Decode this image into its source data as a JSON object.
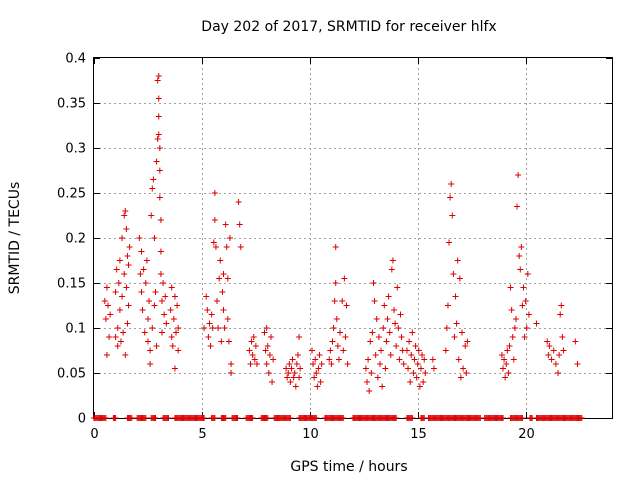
{
  "chart_data": {
    "type": "scatter",
    "title": "Day 202 of 2017, SRMTID for receiver hlfx",
    "xlabel": "GPS time / hours",
    "ylabel": "SRMTID / TECUs",
    "xlim": [
      0,
      24
    ],
    "ylim": [
      0,
      0.4
    ],
    "xticks": [
      0,
      5,
      10,
      15,
      20
    ],
    "yticks": [
      0,
      0.05,
      0.1,
      0.15,
      0.2,
      0.25,
      0.3,
      0.35,
      0.4
    ],
    "xtick_labels": [
      "0",
      "5",
      "10",
      "15",
      "20"
    ],
    "ytick_labels": [
      "0",
      "0.05",
      "0.1",
      "0.15",
      "0.2",
      "0.25",
      "0.3",
      "0.35",
      "0.4"
    ],
    "grid": true,
    "marker": "+",
    "color": "#dd0000",
    "series": [
      {
        "name": "SRMTID",
        "points": [
          [
            0.5,
            0.13
          ],
          [
            0.55,
            0.11
          ],
          [
            0.6,
            0.145
          ],
          [
            0.6,
            0.07
          ],
          [
            0.65,
            0.125
          ],
          [
            0.7,
            0.09
          ],
          [
            0.75,
            0.115
          ],
          [
            1.0,
            0.09
          ],
          [
            1.0,
            0.14
          ],
          [
            1.05,
            0.165
          ],
          [
            1.1,
            0.1
          ],
          [
            1.1,
            0.08
          ],
          [
            1.15,
            0.15
          ],
          [
            1.2,
            0.175
          ],
          [
            1.2,
            0.12
          ],
          [
            1.25,
            0.085
          ],
          [
            1.3,
            0.2
          ],
          [
            1.3,
            0.135
          ],
          [
            1.35,
            0.095
          ],
          [
            1.4,
            0.225
          ],
          [
            1.4,
            0.16
          ],
          [
            1.45,
            0.23
          ],
          [
            1.45,
            0.07
          ],
          [
            1.5,
            0.21
          ],
          [
            1.5,
            0.145
          ],
          [
            1.55,
            0.18
          ],
          [
            1.55,
            0.105
          ],
          [
            1.6,
            0.17
          ],
          [
            1.6,
            0.125
          ],
          [
            1.65,
            0.19
          ],
          [
            2.1,
            0.2
          ],
          [
            2.15,
            0.16
          ],
          [
            2.2,
            0.185
          ],
          [
            2.2,
            0.14
          ],
          [
            2.25,
            0.12
          ],
          [
            2.3,
            0.165
          ],
          [
            2.35,
            0.095
          ],
          [
            2.4,
            0.15
          ],
          [
            2.45,
            0.175
          ],
          [
            2.5,
            0.11
          ],
          [
            2.5,
            0.085
          ],
          [
            2.55,
            0.13
          ],
          [
            2.6,
            0.075
          ],
          [
            2.6,
            0.06
          ],
          [
            2.65,
            0.225
          ],
          [
            2.7,
            0.255
          ],
          [
            2.7,
            0.1
          ],
          [
            2.75,
            0.265
          ],
          [
            2.8,
            0.2
          ],
          [
            2.8,
            0.125
          ],
          [
            2.85,
            0.14
          ],
          [
            2.9,
            0.285
          ],
          [
            2.9,
            0.08
          ],
          [
            2.95,
            0.31
          ],
          [
            2.95,
            0.375
          ],
          [
            3.0,
            0.38
          ],
          [
            3.0,
            0.355
          ],
          [
            3.0,
            0.335
          ],
          [
            3.0,
            0.315
          ],
          [
            3.05,
            0.3
          ],
          [
            3.05,
            0.275
          ],
          [
            3.05,
            0.245
          ],
          [
            3.1,
            0.22
          ],
          [
            3.1,
            0.185
          ],
          [
            3.1,
            0.16
          ],
          [
            3.15,
            0.13
          ],
          [
            3.15,
            0.095
          ],
          [
            3.2,
            0.15
          ],
          [
            3.25,
            0.115
          ],
          [
            3.3,
            0.135
          ],
          [
            3.35,
            0.105
          ],
          [
            3.55,
            0.12
          ],
          [
            3.6,
            0.09
          ],
          [
            3.6,
            0.145
          ],
          [
            3.65,
            0.08
          ],
          [
            3.7,
            0.11
          ],
          [
            3.75,
            0.135
          ],
          [
            3.75,
            0.055
          ],
          [
            3.8,
            0.095
          ],
          [
            3.85,
            0.125
          ],
          [
            3.9,
            0.075
          ],
          [
            3.9,
            0.1
          ],
          [
            5.1,
            0.1
          ],
          [
            5.2,
            0.135
          ],
          [
            5.25,
            0.12
          ],
          [
            5.3,
            0.09
          ],
          [
            5.35,
            0.105
          ],
          [
            5.4,
            0.08
          ],
          [
            5.45,
            0.115
          ],
          [
            5.5,
            0.1
          ],
          [
            5.55,
            0.195
          ],
          [
            5.6,
            0.22
          ],
          [
            5.6,
            0.25
          ],
          [
            5.65,
            0.19
          ],
          [
            5.7,
            0.13
          ],
          [
            5.75,
            0.1
          ],
          [
            5.8,
            0.155
          ],
          [
            5.85,
            0.175
          ],
          [
            5.9,
            0.085
          ],
          [
            5.95,
            0.14
          ],
          [
            6.0,
            0.16
          ],
          [
            6.0,
            0.12
          ],
          [
            6.05,
            0.1
          ],
          [
            6.1,
            0.215
          ],
          [
            6.15,
            0.19
          ],
          [
            6.2,
            0.155
          ],
          [
            6.2,
            0.11
          ],
          [
            6.25,
            0.085
          ],
          [
            6.3,
            0.2
          ],
          [
            6.35,
            0.06
          ],
          [
            6.35,
            0.05
          ],
          [
            6.7,
            0.24
          ],
          [
            6.75,
            0.215
          ],
          [
            6.8,
            0.19
          ],
          [
            7.2,
            0.075
          ],
          [
            7.25,
            0.06
          ],
          [
            7.3,
            0.085
          ],
          [
            7.35,
            0.07
          ],
          [
            7.4,
            0.09
          ],
          [
            7.45,
            0.065
          ],
          [
            7.5,
            0.08
          ],
          [
            7.55,
            0.06
          ],
          [
            7.9,
            0.095
          ],
          [
            7.95,
            0.075
          ],
          [
            8.0,
            0.06
          ],
          [
            8.0,
            0.1
          ],
          [
            8.05,
            0.08
          ],
          [
            8.1,
            0.05
          ],
          [
            8.15,
            0.07
          ],
          [
            8.2,
            0.09
          ],
          [
            8.25,
            0.04
          ],
          [
            8.3,
            0.065
          ],
          [
            8.9,
            0.055
          ],
          [
            8.95,
            0.045
          ],
          [
            9.0,
            0.05
          ],
          [
            9.05,
            0.06
          ],
          [
            9.1,
            0.04
          ],
          [
            9.15,
            0.055
          ],
          [
            9.2,
            0.065
          ],
          [
            9.25,
            0.045
          ],
          [
            9.3,
            0.05
          ],
          [
            9.35,
            0.035
          ],
          [
            9.4,
            0.06
          ],
          [
            9.45,
            0.07
          ],
          [
            9.5,
            0.09
          ],
          [
            9.5,
            0.045
          ],
          [
            9.55,
            0.055
          ],
          [
            10.1,
            0.075
          ],
          [
            10.15,
            0.06
          ],
          [
            10.2,
            0.045
          ],
          [
            10.25,
            0.065
          ],
          [
            10.3,
            0.05
          ],
          [
            10.35,
            0.035
          ],
          [
            10.4,
            0.055
          ],
          [
            10.45,
            0.07
          ],
          [
            10.5,
            0.04
          ],
          [
            10.55,
            0.06
          ],
          [
            10.9,
            0.065
          ],
          [
            10.95,
            0.075
          ],
          [
            11.0,
            0.06
          ],
          [
            11.05,
            0.085
          ],
          [
            11.1,
            0.1
          ],
          [
            11.15,
            0.13
          ],
          [
            11.2,
            0.15
          ],
          [
            11.2,
            0.19
          ],
          [
            11.25,
            0.11
          ],
          [
            11.3,
            0.08
          ],
          [
            11.35,
            0.065
          ],
          [
            11.4,
            0.095
          ],
          [
            11.5,
            0.13
          ],
          [
            11.55,
            0.075
          ],
          [
            11.6,
            0.155
          ],
          [
            11.65,
            0.09
          ],
          [
            11.7,
            0.125
          ],
          [
            11.75,
            0.06
          ],
          [
            12.6,
            0.055
          ],
          [
            12.65,
            0.04
          ],
          [
            12.7,
            0.065
          ],
          [
            12.75,
            0.03
          ],
          [
            12.8,
            0.085
          ],
          [
            12.85,
            0.05
          ],
          [
            12.9,
            0.095
          ],
          [
            12.95,
            0.15
          ],
          [
            13.0,
            0.13
          ],
          [
            13.05,
            0.07
          ],
          [
            13.1,
            0.11
          ],
          [
            13.15,
            0.045
          ],
          [
            13.2,
            0.09
          ],
          [
            13.25,
            0.06
          ],
          [
            13.3,
            0.075
          ],
          [
            13.35,
            0.035
          ],
          [
            13.4,
            0.1
          ],
          [
            13.45,
            0.125
          ],
          [
            13.5,
            0.055
          ],
          [
            13.55,
            0.085
          ],
          [
            13.6,
            0.11
          ],
          [
            13.65,
            0.135
          ],
          [
            13.7,
            0.095
          ],
          [
            13.75,
            0.07
          ],
          [
            13.8,
            0.165
          ],
          [
            13.85,
            0.175
          ],
          [
            13.9,
            0.12
          ],
          [
            13.95,
            0.105
          ],
          [
            14.0,
            0.08
          ],
          [
            14.05,
            0.145
          ],
          [
            14.1,
            0.1
          ],
          [
            14.15,
            0.065
          ],
          [
            14.2,
            0.115
          ],
          [
            14.25,
            0.09
          ],
          [
            14.3,
            0.075
          ],
          [
            14.35,
            0.06
          ],
          [
            14.5,
            0.075
          ],
          [
            14.55,
            0.055
          ],
          [
            14.6,
            0.085
          ],
          [
            14.65,
            0.04
          ],
          [
            14.7,
            0.07
          ],
          [
            14.75,
            0.095
          ],
          [
            14.8,
            0.05
          ],
          [
            14.85,
            0.065
          ],
          [
            14.9,
            0.08
          ],
          [
            14.95,
            0.045
          ],
          [
            15.0,
            0.06
          ],
          [
            15.05,
            0.075
          ],
          [
            15.1,
            0.035
          ],
          [
            15.15,
            0.055
          ],
          [
            15.2,
            0.07
          ],
          [
            15.25,
            0.04
          ],
          [
            15.3,
            0.065
          ],
          [
            15.35,
            0.05
          ],
          [
            15.7,
            0.065
          ],
          [
            15.75,
            0.055
          ],
          [
            16.3,
            0.075
          ],
          [
            16.35,
            0.1
          ],
          [
            16.4,
            0.125
          ],
          [
            16.45,
            0.195
          ],
          [
            16.5,
            0.245
          ],
          [
            16.55,
            0.26
          ],
          [
            16.6,
            0.225
          ],
          [
            16.65,
            0.16
          ],
          [
            16.7,
            0.09
          ],
          [
            16.75,
            0.135
          ],
          [
            16.8,
            0.105
          ],
          [
            16.85,
            0.175
          ],
          [
            16.9,
            0.065
          ],
          [
            16.95,
            0.155
          ],
          [
            17.0,
            0.045
          ],
          [
            17.05,
            0.095
          ],
          [
            17.1,
            0.055
          ],
          [
            17.2,
            0.08
          ],
          [
            17.25,
            0.05
          ],
          [
            17.3,
            0.085
          ],
          [
            18.9,
            0.07
          ],
          [
            18.95,
            0.055
          ],
          [
            19.0,
            0.065
          ],
          [
            19.05,
            0.045
          ],
          [
            19.1,
            0.06
          ],
          [
            19.15,
            0.075
          ],
          [
            19.2,
            0.05
          ],
          [
            19.25,
            0.08
          ],
          [
            19.3,
            0.145
          ],
          [
            19.35,
            0.12
          ],
          [
            19.4,
            0.09
          ],
          [
            19.45,
            0.065
          ],
          [
            19.5,
            0.1
          ],
          [
            19.55,
            0.11
          ],
          [
            19.6,
            0.235
          ],
          [
            19.65,
            0.27
          ],
          [
            19.7,
            0.18
          ],
          [
            19.75,
            0.165
          ],
          [
            19.8,
            0.19
          ],
          [
            19.85,
            0.125
          ],
          [
            19.9,
            0.145
          ],
          [
            19.95,
            0.09
          ],
          [
            20.0,
            0.13
          ],
          [
            20.05,
            0.1
          ],
          [
            20.1,
            0.16
          ],
          [
            20.15,
            0.115
          ],
          [
            20.5,
            0.105
          ],
          [
            21.0,
            0.085
          ],
          [
            21.05,
            0.07
          ],
          [
            21.1,
            0.08
          ],
          [
            21.2,
            0.065
          ],
          [
            21.3,
            0.075
          ],
          [
            21.4,
            0.06
          ],
          [
            21.5,
            0.05
          ],
          [
            21.55,
            0.07
          ],
          [
            21.6,
            0.115
          ],
          [
            21.65,
            0.125
          ],
          [
            21.7,
            0.09
          ],
          [
            21.75,
            0.075
          ],
          [
            22.3,
            0.085
          ],
          [
            22.4,
            0.06
          ]
        ],
        "zero_runs": [
          [
            0.0,
            0.55
          ],
          [
            0.9,
            1.0
          ],
          [
            1.55,
            1.75
          ],
          [
            2.0,
            2.4
          ],
          [
            2.65,
            2.85
          ],
          [
            3.2,
            3.45
          ],
          [
            3.75,
            5.1
          ],
          [
            5.45,
            5.6
          ],
          [
            5.9,
            6.1
          ],
          [
            6.4,
            6.65
          ],
          [
            7.05,
            7.35
          ],
          [
            7.75,
            8.05
          ],
          [
            8.35,
            9.1
          ],
          [
            9.5,
            10.3
          ],
          [
            10.7,
            11.55
          ],
          [
            12.0,
            14.0
          ],
          [
            14.5,
            14.75
          ],
          [
            15.15,
            15.3
          ],
          [
            15.5,
            17.9
          ],
          [
            18.1,
            18.95
          ],
          [
            19.3,
            19.85
          ],
          [
            20.2,
            20.3
          ],
          [
            20.5,
            22.6
          ]
        ]
      }
    ]
  }
}
